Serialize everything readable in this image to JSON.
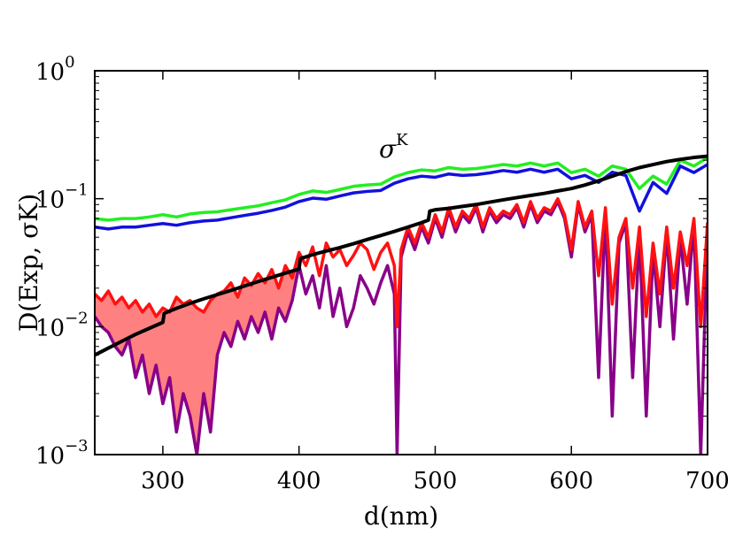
{
  "chart_data": {
    "type": "line",
    "title": "",
    "xlabel": "d(nm)",
    "ylabel": "D(Exp, σK)",
    "xlim": [
      250,
      700
    ],
    "ylim": [
      0.001,
      1
    ],
    "yscale": "log",
    "x_ticks": [
      300,
      400,
      500,
      600,
      700
    ],
    "y_ticks": [
      {
        "value": 0.001,
        "base": "10",
        "exp": "−3"
      },
      {
        "value": 0.01,
        "base": "10",
        "exp": "−2"
      },
      {
        "value": 0.1,
        "base": "10",
        "exp": "−1"
      },
      {
        "value": 1,
        "base": "10",
        "exp": "0"
      }
    ],
    "annotations": [
      {
        "text": "σ",
        "sup": "K",
        "x": 470,
        "y": 0.3
      }
    ],
    "series": [
      {
        "name": "green",
        "color": "#22ee22",
        "x": [
          250,
          260,
          270,
          280,
          290,
          300,
          310,
          320,
          330,
          340,
          350,
          360,
          370,
          380,
          390,
          400,
          410,
          420,
          430,
          440,
          450,
          460,
          470,
          480,
          490,
          500,
          510,
          520,
          530,
          540,
          550,
          560,
          570,
          580,
          590,
          600,
          610,
          620,
          630,
          640,
          650,
          660,
          670,
          680,
          690,
          700
        ],
        "y": [
          0.07,
          0.068,
          0.07,
          0.07,
          0.072,
          0.075,
          0.072,
          0.076,
          0.078,
          0.079,
          0.082,
          0.085,
          0.088,
          0.093,
          0.098,
          0.108,
          0.115,
          0.112,
          0.118,
          0.125,
          0.128,
          0.13,
          0.148,
          0.16,
          0.168,
          0.165,
          0.175,
          0.17,
          0.172,
          0.178,
          0.185,
          0.18,
          0.19,
          0.18,
          0.19,
          0.16,
          0.17,
          0.15,
          0.18,
          0.17,
          0.12,
          0.15,
          0.13,
          0.2,
          0.18,
          0.21
        ]
      },
      {
        "name": "blue",
        "color": "#1111dd",
        "x": [
          250,
          260,
          270,
          280,
          290,
          300,
          310,
          320,
          330,
          340,
          350,
          360,
          370,
          380,
          390,
          400,
          410,
          420,
          430,
          440,
          450,
          460,
          470,
          480,
          490,
          500,
          510,
          520,
          530,
          540,
          550,
          560,
          570,
          580,
          590,
          600,
          610,
          620,
          630,
          640,
          650,
          660,
          670,
          680,
          690,
          700
        ],
        "y": [
          0.06,
          0.058,
          0.06,
          0.06,
          0.062,
          0.064,
          0.062,
          0.065,
          0.067,
          0.068,
          0.071,
          0.074,
          0.077,
          0.081,
          0.086,
          0.095,
          0.101,
          0.099,
          0.105,
          0.111,
          0.114,
          0.116,
          0.132,
          0.143,
          0.15,
          0.147,
          0.156,
          0.152,
          0.154,
          0.159,
          0.166,
          0.161,
          0.17,
          0.161,
          0.17,
          0.143,
          0.152,
          0.134,
          0.161,
          0.152,
          0.08,
          0.134,
          0.11,
          0.18,
          0.16,
          0.185
        ]
      },
      {
        "name": "black",
        "color": "#000000",
        "x": [
          250,
          260,
          270,
          280,
          290,
          300,
          301,
          310,
          320,
          330,
          340,
          350,
          360,
          370,
          380,
          390,
          400,
          401,
          410,
          420,
          430,
          440,
          450,
          460,
          470,
          480,
          490,
          495,
          496,
          500,
          510,
          520,
          530,
          540,
          550,
          560,
          570,
          580,
          590,
          600,
          610,
          620,
          630,
          640,
          650,
          660,
          670,
          680,
          690,
          700
        ],
        "y": [
          0.006,
          0.0068,
          0.0077,
          0.0087,
          0.0097,
          0.0108,
          0.0127,
          0.0139,
          0.0152,
          0.0165,
          0.0178,
          0.0192,
          0.0208,
          0.0225,
          0.0243,
          0.0262,
          0.0282,
          0.034,
          0.0365,
          0.039,
          0.0415,
          0.0445,
          0.048,
          0.0515,
          0.0555,
          0.06,
          0.065,
          0.068,
          0.08,
          0.082,
          0.084,
          0.087,
          0.09,
          0.094,
          0.098,
          0.102,
          0.106,
          0.11,
          0.115,
          0.12,
          0.128,
          0.138,
          0.15,
          0.163,
          0.175,
          0.185,
          0.195,
          0.203,
          0.21,
          0.215
        ]
      },
      {
        "name": "red",
        "color": "#ff1111",
        "x": [
          250,
          255,
          260,
          265,
          270,
          275,
          280,
          285,
          290,
          295,
          300,
          305,
          310,
          315,
          320,
          325,
          330,
          335,
          340,
          345,
          350,
          355,
          360,
          365,
          370,
          375,
          380,
          385,
          390,
          395,
          400,
          405,
          410,
          415,
          420,
          425,
          430,
          435,
          440,
          445,
          450,
          455,
          460,
          465,
          470,
          472,
          475,
          480,
          485,
          490,
          495,
          500,
          505,
          510,
          515,
          520,
          525,
          530,
          535,
          540,
          545,
          550,
          555,
          560,
          565,
          570,
          575,
          580,
          585,
          590,
          595,
          600,
          605,
          610,
          615,
          620,
          625,
          630,
          635,
          640,
          645,
          650,
          655,
          660,
          665,
          670,
          675,
          680,
          685,
          690,
          695,
          700
        ],
        "y": [
          0.018,
          0.016,
          0.019,
          0.015,
          0.017,
          0.014,
          0.016,
          0.013,
          0.015,
          0.012,
          0.014,
          0.013,
          0.017,
          0.015,
          0.016,
          0.014,
          0.013,
          0.016,
          0.018,
          0.019,
          0.022,
          0.017,
          0.024,
          0.021,
          0.026,
          0.022,
          0.028,
          0.02,
          0.03,
          0.024,
          0.038,
          0.03,
          0.042,
          0.025,
          0.045,
          0.035,
          0.04,
          0.03,
          0.036,
          0.045,
          0.04,
          0.028,
          0.038,
          0.045,
          0.03,
          0.01,
          0.04,
          0.06,
          0.045,
          0.065,
          0.05,
          0.075,
          0.055,
          0.085,
          0.06,
          0.08,
          0.07,
          0.09,
          0.06,
          0.085,
          0.07,
          0.08,
          0.075,
          0.09,
          0.065,
          0.095,
          0.07,
          0.085,
          0.08,
          0.1,
          0.075,
          0.04,
          0.095,
          0.06,
          0.08,
          0.025,
          0.085,
          0.015,
          0.05,
          0.07,
          0.02,
          0.06,
          0.012,
          0.045,
          0.018,
          0.06,
          0.02,
          0.055,
          0.03,
          0.07,
          0.01,
          0.065
        ]
      },
      {
        "name": "purple",
        "color": "#880088",
        "x": [
          250,
          255,
          260,
          265,
          270,
          275,
          280,
          285,
          290,
          295,
          300,
          305,
          310,
          315,
          320,
          325,
          330,
          335,
          340,
          345,
          350,
          355,
          360,
          365,
          370,
          375,
          380,
          385,
          390,
          395,
          400,
          405,
          410,
          415,
          420,
          425,
          430,
          435,
          440,
          445,
          450,
          455,
          460,
          465,
          470,
          472,
          475,
          480,
          485,
          490,
          495,
          500,
          505,
          510,
          515,
          520,
          525,
          530,
          535,
          540,
          545,
          550,
          555,
          560,
          565,
          570,
          575,
          580,
          585,
          590,
          595,
          600,
          605,
          610,
          615,
          620,
          625,
          630,
          635,
          640,
          645,
          650,
          655,
          660,
          665,
          670,
          675,
          680,
          685,
          690,
          695,
          700
        ],
        "y": [
          0.012,
          0.01,
          0.009,
          0.007,
          0.006,
          0.008,
          0.004,
          0.006,
          0.003,
          0.005,
          0.0025,
          0.004,
          0.0015,
          0.003,
          0.002,
          0.001,
          0.003,
          0.0015,
          0.006,
          0.009,
          0.007,
          0.011,
          0.008,
          0.012,
          0.009,
          0.013,
          0.008,
          0.014,
          0.011,
          0.016,
          0.03,
          0.018,
          0.025,
          0.014,
          0.03,
          0.012,
          0.02,
          0.01,
          0.014,
          0.025,
          0.02,
          0.015,
          0.022,
          0.03,
          0.018,
          0.001,
          0.035,
          0.055,
          0.04,
          0.06,
          0.045,
          0.07,
          0.05,
          0.08,
          0.055,
          0.075,
          0.065,
          0.085,
          0.055,
          0.08,
          0.065,
          0.075,
          0.07,
          0.085,
          0.06,
          0.09,
          0.065,
          0.08,
          0.075,
          0.095,
          0.07,
          0.035,
          0.09,
          0.055,
          0.075,
          0.004,
          0.08,
          0.002,
          0.045,
          0.065,
          0.004,
          0.055,
          0.002,
          0.04,
          0.01,
          0.055,
          0.008,
          0.05,
          0.015,
          0.065,
          0.001,
          0.06
        ]
      }
    ],
    "shaded_band": {
      "between": [
        "purple",
        "red"
      ],
      "color": "#ff8080",
      "x_range": [
        250,
        400
      ]
    }
  }
}
